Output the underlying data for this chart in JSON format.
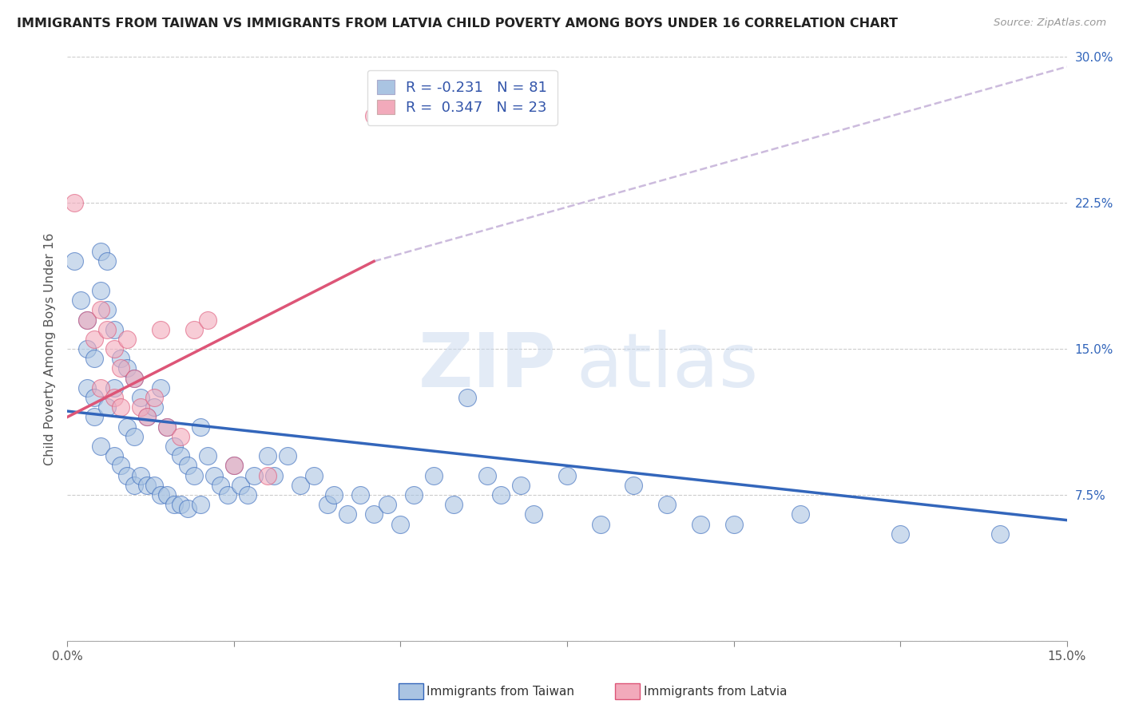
{
  "title": "IMMIGRANTS FROM TAIWAN VS IMMIGRANTS FROM LATVIA CHILD POVERTY AMONG BOYS UNDER 16 CORRELATION CHART",
  "source": "Source: ZipAtlas.com",
  "ylabel": "Child Poverty Among Boys Under 16",
  "ytick_values": [
    0.0,
    0.075,
    0.15,
    0.225,
    0.3
  ],
  "ytick_labels": [
    "",
    "7.5%",
    "15.0%",
    "22.5%",
    "30.0%"
  ],
  "xlim": [
    0.0,
    0.15
  ],
  "ylim": [
    0.0,
    0.3
  ],
  "taiwan_color": "#aac4e2",
  "latvia_color": "#f2aabb",
  "taiwan_line_color": "#3366bb",
  "latvia_line_color": "#dd5577",
  "dashed_color": "#ccbbdd",
  "taiwan_scatter_x": [
    0.001,
    0.002,
    0.003,
    0.003,
    0.003,
    0.004,
    0.004,
    0.004,
    0.005,
    0.005,
    0.005,
    0.006,
    0.006,
    0.006,
    0.007,
    0.007,
    0.007,
    0.008,
    0.008,
    0.009,
    0.009,
    0.009,
    0.01,
    0.01,
    0.01,
    0.011,
    0.011,
    0.012,
    0.012,
    0.013,
    0.013,
    0.014,
    0.014,
    0.015,
    0.015,
    0.016,
    0.016,
    0.017,
    0.017,
    0.018,
    0.018,
    0.019,
    0.02,
    0.02,
    0.021,
    0.022,
    0.023,
    0.024,
    0.025,
    0.026,
    0.027,
    0.028,
    0.03,
    0.031,
    0.033,
    0.035,
    0.037,
    0.039,
    0.04,
    0.042,
    0.044,
    0.046,
    0.048,
    0.05,
    0.052,
    0.055,
    0.058,
    0.06,
    0.063,
    0.065,
    0.068,
    0.07,
    0.075,
    0.08,
    0.085,
    0.09,
    0.095,
    0.1,
    0.11,
    0.125,
    0.14
  ],
  "taiwan_scatter_y": [
    0.195,
    0.175,
    0.165,
    0.15,
    0.13,
    0.145,
    0.125,
    0.115,
    0.2,
    0.18,
    0.1,
    0.195,
    0.17,
    0.12,
    0.16,
    0.13,
    0.095,
    0.145,
    0.09,
    0.14,
    0.11,
    0.085,
    0.135,
    0.105,
    0.08,
    0.125,
    0.085,
    0.115,
    0.08,
    0.12,
    0.08,
    0.13,
    0.075,
    0.11,
    0.075,
    0.1,
    0.07,
    0.095,
    0.07,
    0.09,
    0.068,
    0.085,
    0.11,
    0.07,
    0.095,
    0.085,
    0.08,
    0.075,
    0.09,
    0.08,
    0.075,
    0.085,
    0.095,
    0.085,
    0.095,
    0.08,
    0.085,
    0.07,
    0.075,
    0.065,
    0.075,
    0.065,
    0.07,
    0.06,
    0.075,
    0.085,
    0.07,
    0.125,
    0.085,
    0.075,
    0.08,
    0.065,
    0.085,
    0.06,
    0.08,
    0.07,
    0.06,
    0.06,
    0.065,
    0.055,
    0.055
  ],
  "latvia_scatter_x": [
    0.001,
    0.003,
    0.004,
    0.005,
    0.005,
    0.006,
    0.007,
    0.007,
    0.008,
    0.008,
    0.009,
    0.01,
    0.011,
    0.012,
    0.013,
    0.014,
    0.015,
    0.017,
    0.019,
    0.021,
    0.025,
    0.03,
    0.046
  ],
  "latvia_scatter_y": [
    0.225,
    0.165,
    0.155,
    0.17,
    0.13,
    0.16,
    0.15,
    0.125,
    0.14,
    0.12,
    0.155,
    0.135,
    0.12,
    0.115,
    0.125,
    0.16,
    0.11,
    0.105,
    0.16,
    0.165,
    0.09,
    0.085,
    0.27
  ],
  "taiwan_trend_x": [
    0.0,
    0.15
  ],
  "taiwan_trend_y": [
    0.118,
    0.062
  ],
  "latvia_trend_x": [
    0.0,
    0.046
  ],
  "latvia_trend_y": [
    0.115,
    0.195
  ],
  "dashed_trend_x": [
    0.046,
    0.15
  ],
  "dashed_trend_y": [
    0.195,
    0.295
  ]
}
